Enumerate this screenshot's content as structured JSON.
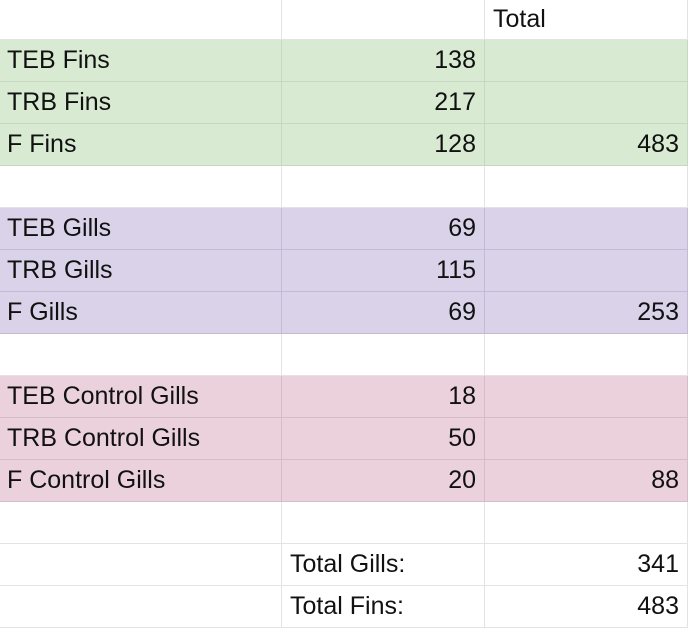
{
  "header": {
    "col_c": "Total"
  },
  "groups": {
    "fins": {
      "rows": [
        {
          "label": "TEB Fins",
          "count": "138",
          "total": ""
        },
        {
          "label": "TRB Fins",
          "count": "217",
          "total": ""
        },
        {
          "label": "F Fins",
          "count": "128",
          "total": "483"
        }
      ],
      "color": "#d9ead3"
    },
    "gills": {
      "rows": [
        {
          "label": "TEB Gills",
          "count": "69",
          "total": ""
        },
        {
          "label": "TRB Gills",
          "count": "115",
          "total": ""
        },
        {
          "label": "F Gills",
          "count": "69",
          "total": "253"
        }
      ],
      "color": "#d9d2e9"
    },
    "control": {
      "rows": [
        {
          "label": "TEB Control Gills",
          "count": "18",
          "total": ""
        },
        {
          "label": "TRB Control Gills",
          "count": "50",
          "total": ""
        },
        {
          "label": "F Control Gills",
          "count": "20",
          "total": "88"
        }
      ],
      "color": "#ead1dc"
    }
  },
  "summary": {
    "total_gills_label": "Total Gills:",
    "total_gills_value": "341",
    "total_fins_label": "Total Fins:",
    "total_fins_value": "483"
  }
}
